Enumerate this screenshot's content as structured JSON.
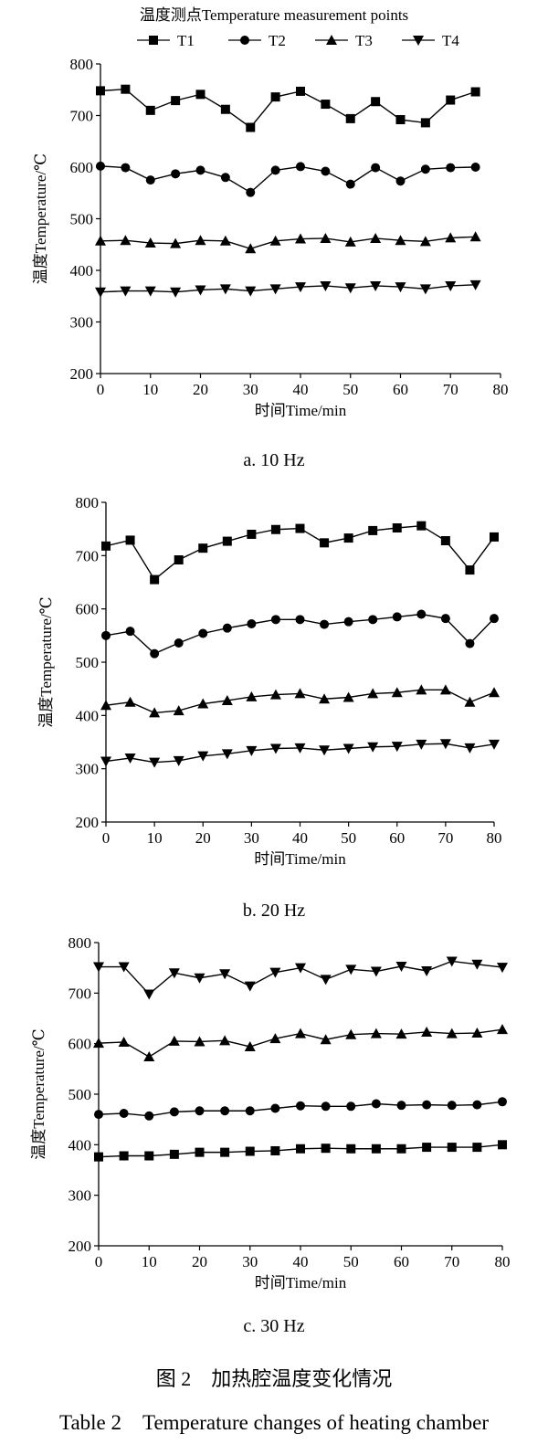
{
  "legend": {
    "title": "温度测点Temperature measurement points",
    "items": [
      {
        "label": "T1",
        "marker": "square"
      },
      {
        "label": "T2",
        "marker": "circle"
      },
      {
        "label": "T3",
        "marker": "triangle-up"
      },
      {
        "label": "T4",
        "marker": "triangle-down"
      }
    ]
  },
  "chart_data": [
    {
      "type": "line",
      "caption": "a. 10 Hz",
      "xlabel": "时间Time/min",
      "ylabel": "温度Temperature/℃",
      "xlim": [
        0,
        80
      ],
      "ylim": [
        200,
        800
      ],
      "xticks": [
        0,
        10,
        20,
        30,
        40,
        50,
        60,
        70,
        80
      ],
      "yticks": [
        200,
        300,
        400,
        500,
        600,
        700,
        800
      ],
      "x": [
        0,
        5,
        10,
        15,
        20,
        25,
        30,
        35,
        40,
        45,
        50,
        55,
        60,
        65,
        70,
        75
      ],
      "series": [
        {
          "name": "T1",
          "marker": "square",
          "values": [
            748,
            751,
            710,
            729,
            741,
            712,
            677,
            736,
            747,
            722,
            694,
            727,
            692,
            686,
            730,
            746
          ]
        },
        {
          "name": "T2",
          "marker": "circle",
          "values": [
            602,
            599,
            575,
            587,
            594,
            580,
            551,
            594,
            601,
            592,
            567,
            599,
            573,
            596,
            599,
            600
          ]
        },
        {
          "name": "T3",
          "marker": "triangle-up",
          "values": [
            457,
            458,
            453,
            452,
            458,
            457,
            442,
            457,
            461,
            462,
            455,
            462,
            458,
            456,
            463,
            465
          ]
        },
        {
          "name": "T4",
          "marker": "triangle-down",
          "values": [
            358,
            360,
            360,
            358,
            362,
            364,
            360,
            364,
            368,
            370,
            366,
            370,
            368,
            364,
            370,
            372
          ]
        }
      ]
    },
    {
      "type": "line",
      "caption": "b. 20 Hz",
      "xlabel": "时间Time/min",
      "ylabel": "温度Temperature/℃",
      "xlim": [
        0,
        80
      ],
      "ylim": [
        200,
        800
      ],
      "xticks": [
        0,
        10,
        20,
        30,
        40,
        50,
        60,
        70,
        80
      ],
      "yticks": [
        200,
        300,
        400,
        500,
        600,
        700,
        800
      ],
      "x": [
        0,
        5,
        10,
        15,
        20,
        25,
        30,
        35,
        40,
        45,
        50,
        55,
        60,
        65,
        70,
        75,
        80
      ],
      "series": [
        {
          "name": "T1",
          "marker": "square",
          "values": [
            718,
            729,
            655,
            692,
            714,
            727,
            740,
            749,
            751,
            724,
            733,
            747,
            752,
            756,
            728,
            673,
            735
          ]
        },
        {
          "name": "T2",
          "marker": "circle",
          "values": [
            550,
            558,
            516,
            536,
            554,
            564,
            572,
            580,
            580,
            571,
            576,
            580,
            585,
            590,
            582,
            535,
            582
          ]
        },
        {
          "name": "T3",
          "marker": "triangle-up",
          "values": [
            419,
            425,
            405,
            409,
            422,
            428,
            435,
            439,
            441,
            431,
            434,
            441,
            443,
            448,
            448,
            425,
            443
          ]
        },
        {
          "name": "T4",
          "marker": "triangle-down",
          "values": [
            314,
            320,
            312,
            315,
            324,
            328,
            334,
            338,
            339,
            335,
            338,
            341,
            342,
            346,
            347,
            339,
            346
          ]
        }
      ]
    },
    {
      "type": "line",
      "caption": "c. 30 Hz",
      "xlabel": "时间Time/min",
      "ylabel": "温度Temperature/℃",
      "xlim": [
        0,
        80
      ],
      "ylim": [
        200,
        800
      ],
      "xticks": [
        0,
        10,
        20,
        30,
        40,
        50,
        60,
        70,
        80
      ],
      "yticks": [
        200,
        300,
        400,
        500,
        600,
        700,
        800
      ],
      "x": [
        0,
        5,
        10,
        15,
        20,
        25,
        30,
        35,
        40,
        45,
        50,
        55,
        60,
        65,
        70,
        75,
        80
      ],
      "series": [
        {
          "name": "T1",
          "marker": "square",
          "values": [
            376,
            378,
            378,
            381,
            385,
            385,
            387,
            388,
            392,
            393,
            392,
            392,
            392,
            395,
            395,
            395,
            400
          ]
        },
        {
          "name": "T2",
          "marker": "circle",
          "values": [
            460,
            462,
            457,
            465,
            467,
            467,
            467,
            472,
            477,
            476,
            476,
            481,
            478,
            479,
            478,
            479,
            485
          ]
        },
        {
          "name": "T3",
          "marker": "triangle-up",
          "values": [
            601,
            603,
            574,
            605,
            604,
            606,
            594,
            610,
            620,
            608,
            618,
            620,
            619,
            623,
            620,
            621,
            628
          ]
        },
        {
          "name": "T4",
          "marker": "triangle-down",
          "values": [
            752,
            752,
            698,
            740,
            730,
            738,
            714,
            741,
            750,
            727,
            747,
            743,
            753,
            744,
            763,
            757,
            751
          ]
        }
      ]
    }
  ],
  "figure_title": "图 2　加热腔温度变化情况",
  "table_title": "Table 2　Temperature changes of heating chamber"
}
